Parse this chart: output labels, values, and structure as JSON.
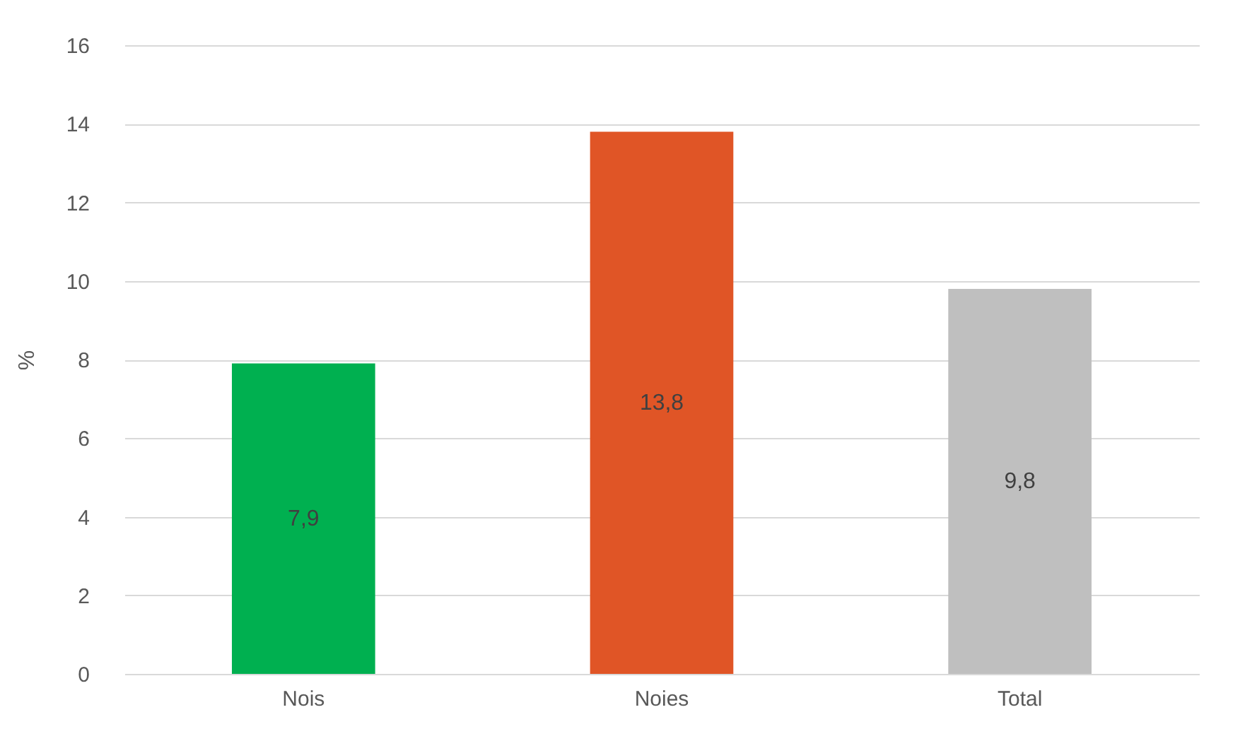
{
  "chart_data": {
    "type": "bar",
    "ylabel": "%",
    "categories": [
      "Nois",
      "Noies",
      "Total"
    ],
    "values": [
      7.9,
      13.8,
      9.8
    ],
    "value_labels": [
      "7,9",
      "13,8",
      "9,8"
    ],
    "colors": [
      "#00b050",
      "#e05526",
      "#bfbfbf"
    ],
    "ylim": [
      0,
      16
    ],
    "yticks": [
      0,
      2,
      4,
      6,
      8,
      10,
      12,
      14,
      16
    ],
    "grid": "y",
    "legend": false
  }
}
